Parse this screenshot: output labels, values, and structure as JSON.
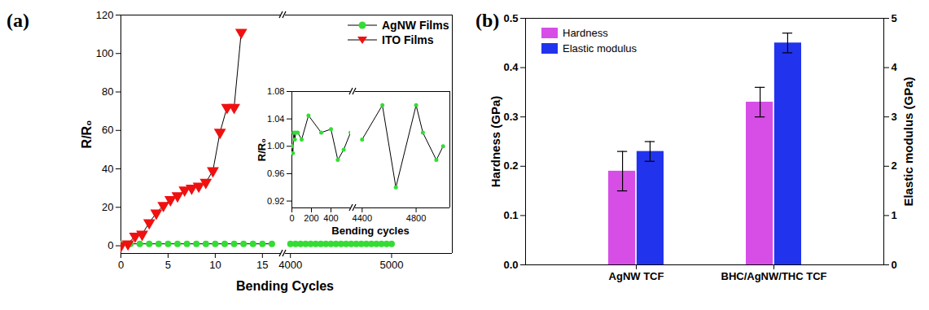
{
  "chart_data": [
    {
      "type": "line",
      "title": "(a)",
      "xlabel": "Bending Cycles",
      "ylabel": "R/R₀",
      "xlim": [
        [
          0,
          17
        ],
        [
          3950,
          5600
        ]
      ],
      "xticks": [
        [
          0,
          5,
          10,
          15
        ],
        [
          4000,
          5000
        ]
      ],
      "ylim": [
        -4,
        120
      ],
      "yticks": [
        0,
        20,
        40,
        60,
        80,
        100,
        120
      ],
      "legend": "upper right",
      "series": [
        {
          "name": "AgNW Films",
          "color": "#33dd33",
          "marker": "circle",
          "x": [
            0,
            1,
            2,
            3,
            4,
            5,
            6,
            7,
            8,
            9,
            10,
            11,
            12,
            13,
            14,
            15,
            16,
            4000,
            4050,
            4100,
            4150,
            4200,
            4250,
            4300,
            4350,
            4400,
            4450,
            4500,
            4550,
            4600,
            4650,
            4700,
            4750,
            4800,
            4850,
            4900,
            4950,
            5000
          ],
          "values": [
            1,
            1,
            1,
            1,
            1,
            1,
            1,
            1,
            1,
            1,
            1,
            1,
            1,
            1,
            1,
            1,
            1,
            1,
            1,
            1,
            1,
            1,
            1,
            1,
            1,
            1,
            1,
            1,
            1,
            1,
            1,
            1,
            1,
            1,
            1,
            1,
            1,
            1
          ]
        },
        {
          "name": "ITO Films",
          "color": "#f01010",
          "marker": "triangle-down",
          "x": [
            0,
            0.75,
            1.5,
            2.25,
            3,
            3.75,
            4.5,
            5.25,
            6,
            6.75,
            7.5,
            8.25,
            9,
            9.75,
            10.5,
            11.25,
            12,
            12.75
          ],
          "values": [
            0,
            1,
            5,
            6,
            12,
            17,
            21,
            24,
            26,
            29,
            30,
            31,
            33,
            39,
            59,
            72,
            72,
            111
          ]
        }
      ]
    },
    {
      "type": "line",
      "xlabel": "Bending cycles",
      "ylabel": "R/R₀",
      "xlim": [
        [
          0,
          600
        ],
        [
          4350,
          5050
        ]
      ],
      "xticks": [
        [
          0,
          200,
          400
        ],
        [
          4400,
          4800
        ]
      ],
      "ylim": [
        0.91,
        1.08
      ],
      "yticks": [
        0.92,
        0.96,
        {
          "value": 1,
          "label": "1.00"
        },
        1.04,
        1.08
      ],
      "series": [
        {
          "color": "#33dd33",
          "marker": "circle",
          "x": [
            0,
            10,
            20,
            30,
            40,
            60,
            100,
            170,
            300,
            400,
            470,
            530,
            600,
            4400,
            4550,
            4650,
            4800,
            4850,
            4950,
            5000
          ],
          "values": [
            1.0,
            0.99,
            1.02,
            1.01,
            1.02,
            1.02,
            1.01,
            1.045,
            1.02,
            1.025,
            0.98,
            0.995,
            1.02,
            1.01,
            1.06,
            0.94,
            1.06,
            1.02,
            0.98,
            1.0
          ]
        }
      ]
    },
    {
      "type": "bar",
      "title": "(b)",
      "categories": [
        "AgNW TCF",
        "BHC/AgNW/THC TCF"
      ],
      "ylabel": "Hardness (GPa)",
      "y2label": "Elastic modulus (GPa)",
      "ylim": [
        0,
        0.5
      ],
      "yticks": [
        {
          "value": 0,
          "label": "0.0"
        },
        0.1,
        0.2,
        0.3,
        0.4,
        0.5
      ],
      "y2lim": [
        0,
        5
      ],
      "y2ticks": [
        0,
        1,
        2,
        3,
        4,
        5
      ],
      "legend": "upper left",
      "series": [
        {
          "name": "Hardness",
          "color": "#d64ee6",
          "values": [
            0.19,
            0.33
          ],
          "errors": [
            0.04,
            0.03
          ]
        },
        {
          "name": "Elastic modulus",
          "color": "#2233ee",
          "values": [
            2.3,
            4.5
          ],
          "errors": [
            0.2,
            0.2
          ],
          "axis": "y2"
        }
      ]
    }
  ]
}
